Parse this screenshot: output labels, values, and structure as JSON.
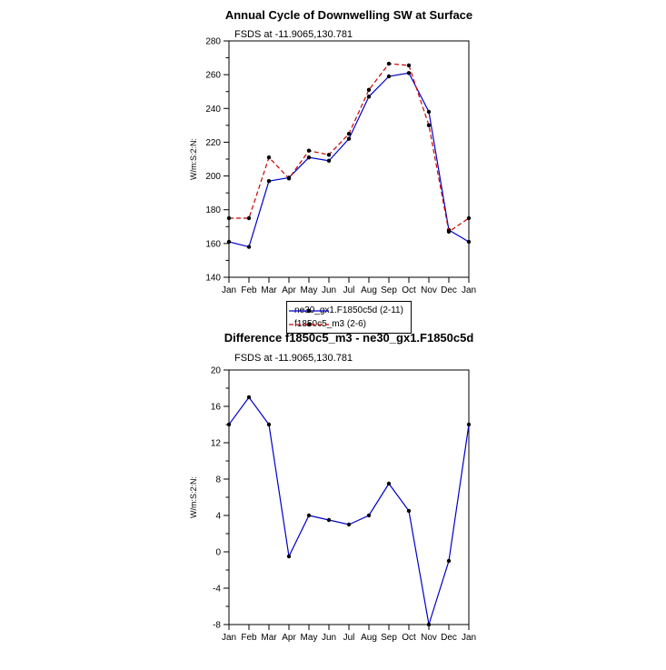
{
  "page": {
    "background": "#ffffff"
  },
  "chart_data": [
    {
      "type": "line",
      "title": "Annual Cycle of Downwelling SW at Surface",
      "subtitle": "FSDS at -11.9065,130.781",
      "ylabel": "W/m:S:2:N:",
      "xlabel": "",
      "categories": [
        "Jan",
        "Feb",
        "Mar",
        "Apr",
        "May",
        "Jun",
        "Jul",
        "Aug",
        "Sep",
        "Oct",
        "Nov",
        "Dec",
        "Jan"
      ],
      "series": [
        {
          "name": "ne30_gx1.F1850c5d (2-11)",
          "color": "#0000cc",
          "style": "solid",
          "values": [
            161,
            158,
            197,
            199,
            211,
            209,
            222,
            247,
            259,
            261,
            238,
            168,
            161
          ]
        },
        {
          "name": "f1850c5_m3 (2-6)",
          "color": "#cc0000",
          "style": "dashed",
          "values": [
            175,
            175,
            211,
            198.5,
            215,
            212.5,
            225,
            251,
            266.5,
            265.5,
            230,
            167,
            175
          ]
        }
      ],
      "marker_color": "#000000",
      "ylim": [
        140,
        280
      ],
      "ytick_step": 20,
      "grid": false,
      "legend_position": "below"
    },
    {
      "type": "line",
      "title": "Difference f1850c5_m3 - ne30_gx1.F1850c5d",
      "subtitle": "FSDS at -11.9065,130.781",
      "ylabel": "W/m:S:2:N:",
      "xlabel": "",
      "categories": [
        "Jan",
        "Feb",
        "Mar",
        "Apr",
        "May",
        "Jun",
        "Jul",
        "Aug",
        "Sep",
        "Oct",
        "Nov",
        "Dec",
        "Jan"
      ],
      "series": [
        {
          "name": "difference",
          "color": "#0000cc",
          "style": "solid",
          "values": [
            14,
            17,
            14,
            -0.5,
            4,
            3.5,
            3,
            4,
            7.5,
            4.5,
            -8,
            -1,
            14
          ]
        }
      ],
      "marker_color": "#000000",
      "ylim": [
        -8,
        20
      ],
      "ytick_step": 4,
      "grid": false,
      "legend_position": "none"
    }
  ]
}
